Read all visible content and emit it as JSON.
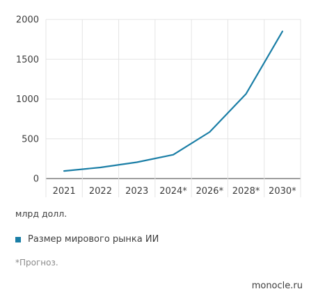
{
  "chart_data": {
    "type": "line",
    "categories": [
      "2021",
      "2022",
      "2023",
      "2024*",
      "2026*",
      "2028*",
      "2030*"
    ],
    "series": [
      {
        "name": "Размер мирового рынка ИИ",
        "values": [
          95,
          140,
          205,
          300,
          585,
          1065,
          1850
        ]
      }
    ],
    "yticks": [
      0,
      500,
      1000,
      1500,
      2000
    ],
    "ylim": [
      0,
      2000
    ],
    "grid": true,
    "line_color": "#1a7ea6",
    "ylabel": "млрд долл.",
    "legend_position": "bottom-left"
  },
  "footnote": "*Прогноз.",
  "source": "monocle.ru"
}
